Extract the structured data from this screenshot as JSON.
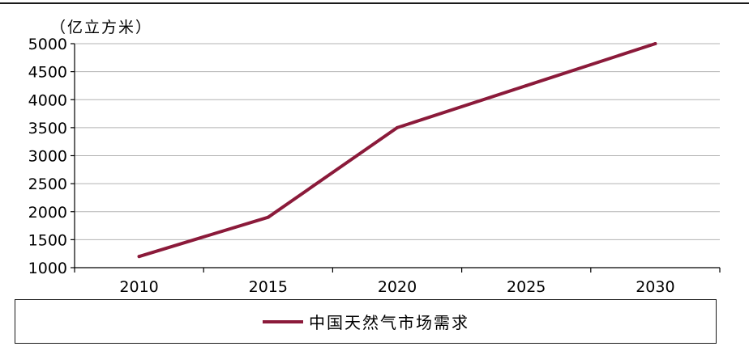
{
  "chart_data": {
    "type": "line",
    "unit_label": "（亿立方米）",
    "x": [
      "2010",
      "2015",
      "2020",
      "2025",
      "2030"
    ],
    "series": [
      {
        "name": "中国天然气市场需求",
        "values": [
          1200,
          1900,
          3500,
          4250,
          5000
        ]
      }
    ],
    "ylim": [
      1000,
      5000
    ],
    "yticks": [
      "1000",
      "1500",
      "2000",
      "2500",
      "3000",
      "3500",
      "4000",
      "4500",
      "5000"
    ],
    "grid": true,
    "legend_position": "bottom",
    "colors": {
      "series": "#8b1a3a",
      "grid": "#b3b3b3",
      "axis": "#000000"
    }
  }
}
